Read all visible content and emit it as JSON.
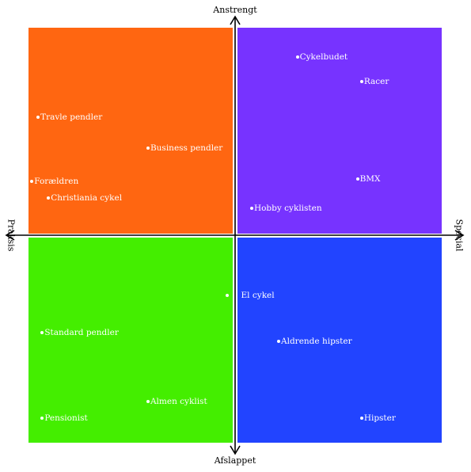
{
  "axes": {
    "top": "Anstrengt",
    "bottom": "Afslappet",
    "left": "Praksis",
    "right": "Special"
  },
  "colors": {
    "top_left": "#ff6611",
    "top_right": "#7733ff",
    "bottom_left": "#44ee00",
    "bottom_right": "#2244ff",
    "axis": "#000000",
    "point": "#ffffff"
  },
  "points": [
    {
      "label": "Cykelbudet",
      "x": 0.3,
      "y": 0.86
    },
    {
      "label": "Racer",
      "x": 0.61,
      "y": 0.74
    },
    {
      "label": "Travle pendler",
      "x": -0.95,
      "y": 0.57
    },
    {
      "label": "Business pendler",
      "x": -0.42,
      "y": 0.42
    },
    {
      "label": "BMX",
      "x": 0.59,
      "y": 0.27
    },
    {
      "label": "Forældren",
      "x": -0.98,
      "y": 0.26
    },
    {
      "label": "Christiania cykel",
      "x": -0.9,
      "y": 0.18
    },
    {
      "label": "Hobby cyklisten",
      "x": 0.08,
      "y": 0.13
    },
    {
      "label": "El cykel",
      "x": -0.04,
      "y": -0.29
    },
    {
      "label": "Standard pendler",
      "x": -0.93,
      "y": -0.47
    },
    {
      "label": "Aldrende hipster",
      "x": 0.21,
      "y": -0.51
    },
    {
      "label": "Almen cyklist",
      "x": -0.42,
      "y": -0.8
    },
    {
      "label": "Pensionist",
      "x": -0.93,
      "y": -0.88
    },
    {
      "label": "Hipster",
      "x": 0.61,
      "y": -0.88
    }
  ]
}
